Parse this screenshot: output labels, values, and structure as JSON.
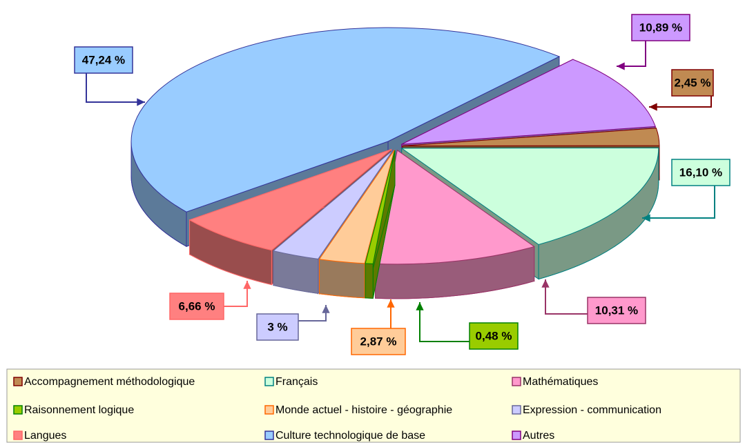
{
  "chart_data": {
    "type": "pie",
    "categories": [
      "Accompagnement méthodologique",
      "Français",
      "Mathématiques",
      "Raisonnement logique",
      "Monde actuel - histoire - géographie",
      "Expression - communication",
      "Langues",
      "Culture technologique de base",
      "Autres"
    ],
    "values": [
      2.45,
      16.1,
      10.31,
      0.48,
      2.87,
      3,
      6.66,
      47.24,
      10.89
    ],
    "value_labels": [
      "2,45 %",
      "16,10 %",
      "10,31 %",
      "0,48 %",
      "2,87 %",
      "3 %",
      "6,66 %",
      "47,24 %",
      "10,89 %"
    ],
    "colors": [
      "#c08a52",
      "#ccffdd",
      "#ff99cc",
      "#99cc00",
      "#ffcc99",
      "#ccccff",
      "#ff8080",
      "#99ccff",
      "#cc99ff"
    ],
    "edge_colors": [
      "#800000",
      "#008080",
      "#993366",
      "#008000",
      "#ff6600",
      "#666699",
      "#ff6666",
      "#333399",
      "#800080"
    ],
    "legend": "bottom",
    "three_d": true
  }
}
